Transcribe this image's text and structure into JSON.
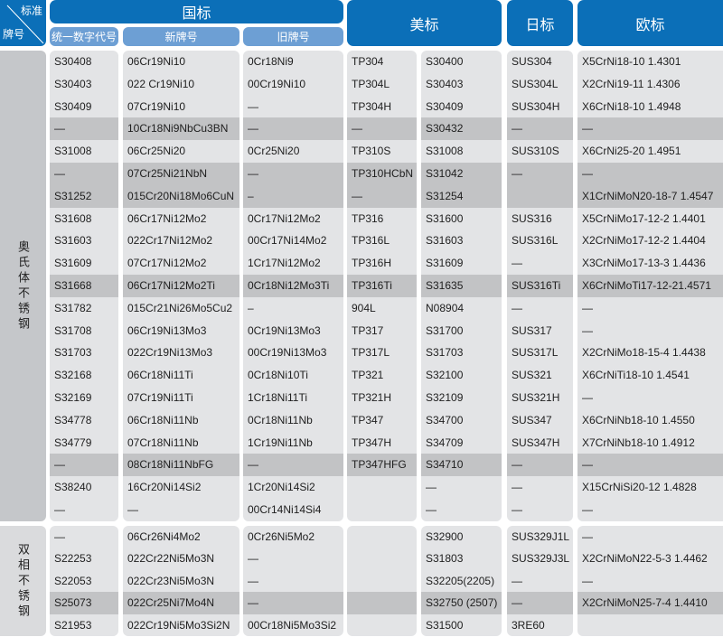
{
  "header": {
    "corner_top": "标准",
    "corner_bottom": "牌号",
    "gb": "国标",
    "gb_sub": [
      "统一数字代号",
      "新牌号",
      "旧牌号"
    ],
    "astm": "美标",
    "jis": "日标",
    "en": "欧标"
  },
  "colors": {
    "header_blue": "#0b6fb8",
    "subheader_blue": "#6d9fd4",
    "panel": "#e3e4e6",
    "highlight_row": "#c2c3c5"
  },
  "groups": [
    {
      "label": "奥氏体不锈钢",
      "highlight_rows": [
        3,
        5,
        6,
        10,
        18
      ],
      "rows": [
        [
          "S30408",
          "06Cr19Ni10",
          "0Cr18Ni9",
          "TP304",
          "S30400",
          "SUS304",
          "X5CrNi18-10 1.4301"
        ],
        [
          "S30403",
          "022 Cr19Ni10",
          "00Cr19Ni10",
          "TP304L",
          "S30403",
          "SUS304L",
          "X2CrNi19-11  1.4306"
        ],
        [
          "S30409",
          "07Cr19Ni10",
          "—",
          "TP304H",
          "S30409",
          "SUS304H",
          "X6CrNi18-10  1.4948"
        ],
        [
          "—",
          "10Cr18Ni9NbCu3BN",
          "—",
          "—",
          "S30432",
          "—",
          "—"
        ],
        [
          "S31008",
          "06Cr25Ni20",
          "0Cr25Ni20",
          "TP310S",
          "S31008",
          "SUS310S",
          "X6CrNi25-20 1.4951"
        ],
        [
          "—",
          "07Cr25Ni21NbN",
          "—",
          "TP310HCbN",
          "S31042",
          "—",
          "—"
        ],
        [
          "S31252",
          "015Cr20Ni18Mo6CuN",
          "–",
          "—",
          "S31254",
          "",
          "X1CrNiMoN20-18-7 1.4547"
        ],
        [
          "S31608",
          "06Cr17Ni12Mo2",
          "0Cr17Ni12Mo2",
          "TP316",
          "S31600",
          "SUS316",
          "X5CrNiMo17-12-2 1.4401"
        ],
        [
          "S31603",
          "022Cr17Ni12Mo2",
          "00Cr17Ni14Mo2",
          "TP316L",
          "S31603",
          "SUS316L",
          "X2CrNiMo17-12-2 1.4404"
        ],
        [
          "S31609",
          "07Cr17Ni12Mo2",
          "1Cr17Ni12Mo2",
          "TP316H",
          "S31609",
          "—",
          "X3CrNiMo17-13-3 1.4436"
        ],
        [
          "S31668",
          "06Cr17Ni12Mo2Ti",
          "0Cr18Ni12Mo3Ti",
          "TP316Ti",
          "S31635",
          "SUS316Ti",
          "X6CrNiMoTi17-12-21.4571"
        ],
        [
          "S31782",
          "015Cr21Ni26Mo5Cu2",
          "–",
          "904L",
          "N08904",
          "—",
          "—"
        ],
        [
          "S31708",
          "06Cr19Ni13Mo3",
          "0Cr19Ni13Mo3",
          "TP317",
          "S31700",
          "SUS317",
          "—"
        ],
        [
          "S31703",
          "022Cr19Ni13Mo3",
          "00Cr19Ni13Mo3",
          "TP317L",
          "S31703",
          "SUS317L",
          "X2CrNiMo18-15-4 1.4438"
        ],
        [
          "S32168",
          "06Cr18Ni11Ti",
          "0Cr18Ni10Ti",
          "TP321",
          "S32100",
          "SUS321",
          "X6CrNiTi18-10 1.4541"
        ],
        [
          "S32169",
          "07Cr19Ni11Ti",
          "1Cr18Ni11Ti",
          "TP321H",
          "S32109",
          "SUS321H",
          "—"
        ],
        [
          "S34778",
          "06Cr18Ni11Nb",
          "0Cr18Ni11Nb",
          "TP347",
          "S34700",
          "SUS347",
          "X6CrNiNb18-10 1.4550"
        ],
        [
          "S34779",
          "07Cr18Ni11Nb",
          "1Cr19Ni11Nb",
          "TP347H",
          "S34709",
          "SUS347H",
          "X7CrNiNb18-10 1.4912"
        ],
        [
          "—",
          "08Cr18Ni11NbFG",
          "—",
          "TP347HFG",
          "S34710",
          "—",
          "—"
        ],
        [
          "S38240",
          "16Cr20Ni14Si2",
          "1Cr20Ni14Si2",
          "",
          "—",
          "—",
          "X15CrNiSi20-12 1.4828"
        ],
        [
          "—",
          "—",
          "00Cr14Ni14Si4",
          "",
          "—",
          "—",
          "—"
        ]
      ]
    },
    {
      "label": "双相不锈钢",
      "highlight_rows": [
        3
      ],
      "rows": [
        [
          "—",
          "06Cr26Ni4Mo2",
          "0Cr26Ni5Mo2",
          "",
          "S32900",
          "SUS329J1L",
          "—"
        ],
        [
          "S22253",
          "022Cr22Ni5Mo3N",
          "—",
          "",
          "S31803",
          "SUS329J3L",
          "X2CrNiMoN22-5-3 1.4462"
        ],
        [
          "S22053",
          "022Cr23Ni5Mo3N",
          "—",
          "",
          "S32205(2205)",
          "—",
          "—"
        ],
        [
          "S25073",
          "022Cr25Ni7Mo4N",
          "—",
          "",
          "S32750 (2507)",
          "—",
          "X2CrNiMoN25-7-4 1.4410"
        ],
        [
          "S21953",
          "022Cr19Ni5Mo3Si2N",
          "00Cr18Ni5Mo3Si2",
          "",
          "S31500",
          "3RE60",
          ""
        ]
      ]
    }
  ]
}
